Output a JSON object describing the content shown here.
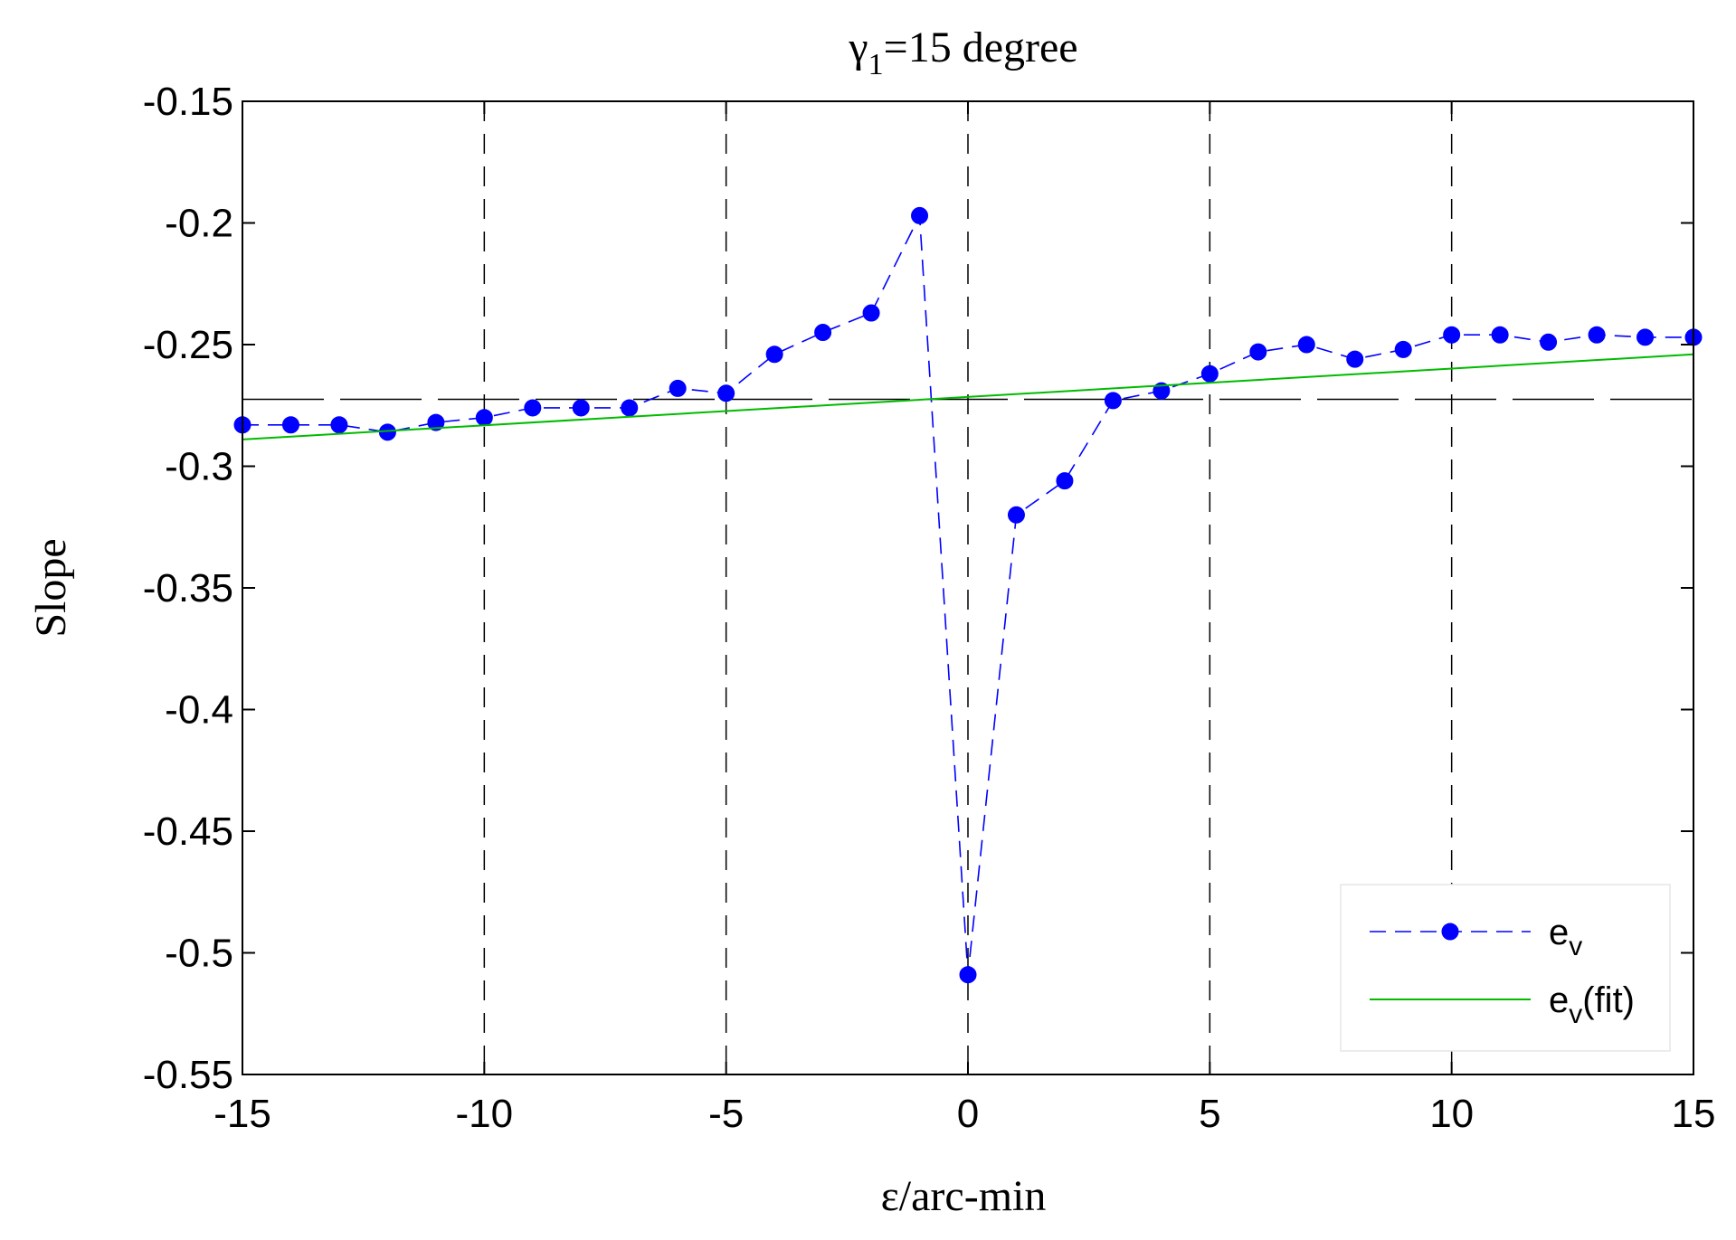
{
  "chart_data": {
    "type": "line",
    "title": {
      "prefix": "γ",
      "subscript": "1",
      "suffix": "=15  degree"
    },
    "xlabel": "ε/arc-min",
    "ylabel": "Slope",
    "xlim": [
      -15,
      15
    ],
    "ylim": [
      -0.55,
      -0.15
    ],
    "xticks": [
      -15,
      -10,
      -5,
      0,
      5,
      10,
      15
    ],
    "xtick_labels": [
      "-15",
      "-10",
      "-5",
      "0",
      "5",
      "10",
      "15"
    ],
    "yticks": [
      -0.55,
      -0.5,
      -0.45,
      -0.4,
      -0.35,
      -0.3,
      -0.25,
      -0.2,
      -0.15
    ],
    "ytick_labels": [
      "-0.55",
      "-0.5",
      "-0.45",
      "-0.4",
      "-0.35",
      "-0.3",
      "-0.25",
      "-0.2",
      "-0.15"
    ],
    "grid": "x",
    "reference_line_y": -0.2725,
    "legend_position": "bottom-right",
    "series": [
      {
        "legend_base": "e",
        "legend_sub": "v",
        "legend_suffix": "",
        "color": "#0000ff",
        "style": "dashed-markers",
        "x": [
          -15,
          -14,
          -13,
          -12,
          -11,
          -10,
          -9,
          -8,
          -7,
          -6,
          -5,
          -4,
          -3,
          -2,
          -1,
          0,
          1,
          2,
          3,
          4,
          5,
          6,
          7,
          8,
          9,
          10,
          11,
          12,
          13,
          14,
          15
        ],
        "y": [
          -0.283,
          -0.283,
          -0.283,
          -0.286,
          -0.282,
          -0.28,
          -0.276,
          -0.276,
          -0.276,
          -0.268,
          -0.27,
          -0.254,
          -0.245,
          -0.237,
          -0.197,
          -0.509,
          -0.32,
          -0.306,
          -0.273,
          -0.269,
          -0.262,
          -0.253,
          -0.25,
          -0.256,
          -0.252,
          -0.246,
          -0.246,
          -0.249,
          -0.246,
          -0.247,
          -0.247
        ]
      },
      {
        "legend_base": "e",
        "legend_sub": "v",
        "legend_suffix": "(fit)",
        "color": "#00bb00",
        "style": "solid",
        "x": [
          -15,
          15
        ],
        "y": [
          -0.289,
          -0.254
        ]
      }
    ]
  }
}
